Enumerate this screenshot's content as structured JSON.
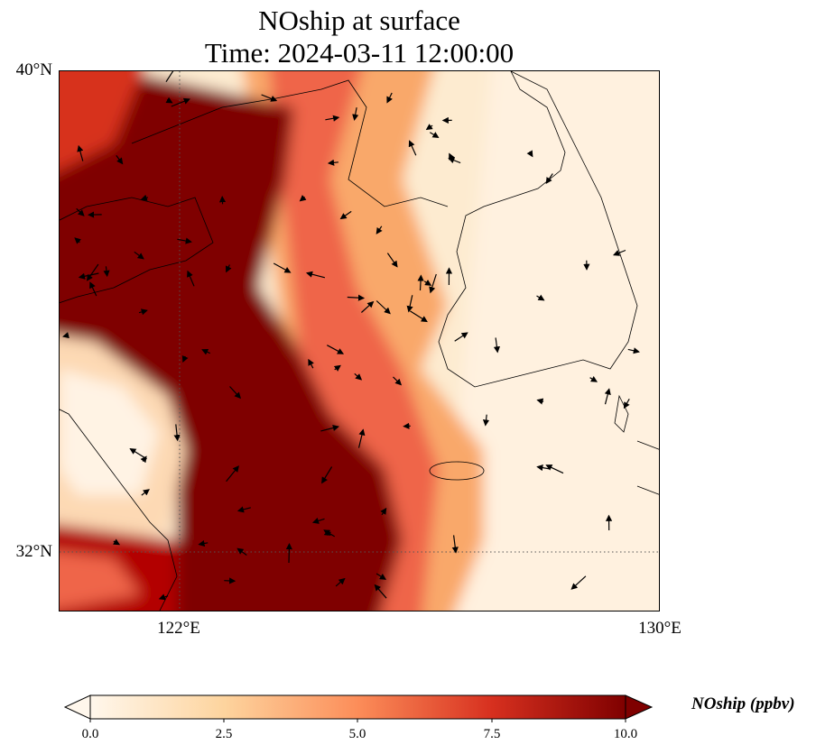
{
  "title": {
    "line1": "NOship at surface",
    "line2": "Time: 2024-03-11 12:00:00"
  },
  "map": {
    "lat_labels": [
      "40°N",
      "32°N"
    ],
    "lon_labels": [
      "122°E",
      "130°E"
    ],
    "extent": {
      "lon_min": 120,
      "lon_max": 130,
      "lat_min": 31,
      "lat_max": 40
    },
    "gridlines": {
      "lons": [
        122
      ],
      "lats": [
        32
      ]
    },
    "colormap": "OrRd",
    "colors": {
      "low": "#fff7ec",
      "mid": "#fdbb84",
      "high": "#ef6548",
      "max": "#7f0000",
      "coastline": "#000000"
    },
    "wind_vectors": "shown"
  },
  "colorbar": {
    "label": "NOship (ppbv)",
    "ticks": [
      "0.0",
      "2.5",
      "5.0",
      "7.5",
      "10.0"
    ],
    "min": 0,
    "max": 10,
    "extend": "both"
  }
}
